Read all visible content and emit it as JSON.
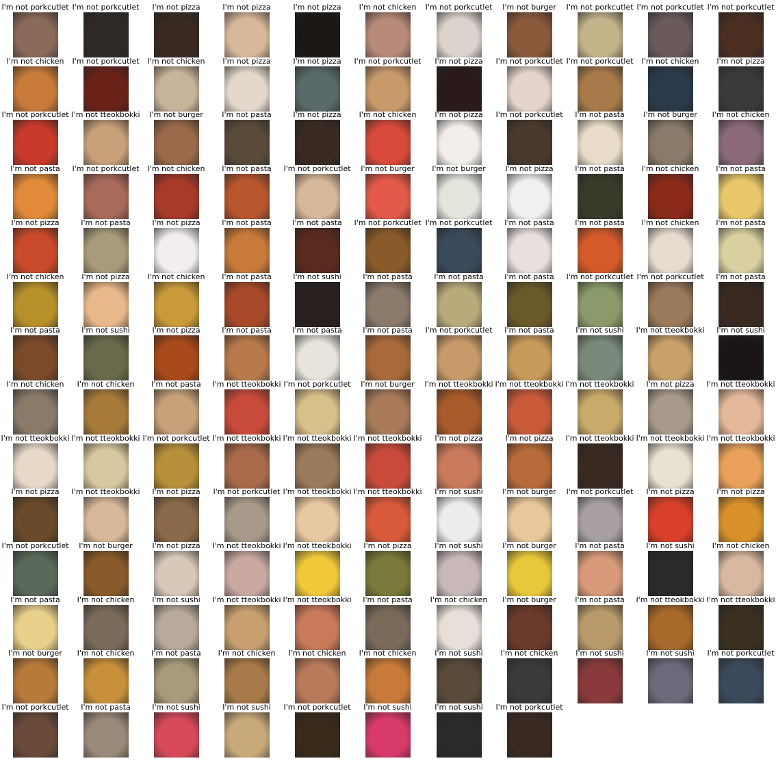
{
  "grid": {
    "rows": [
      [
        "I'm not porkcutlet",
        "I'm not porkcutlet",
        "I'm not pizza",
        "I'm not pizza",
        "I'm not pizza",
        "I'm not chicken",
        "I'm not porkcutlet",
        "I'm not burger",
        "I'm not porkcutlet",
        "I'm not porkcutlet",
        "I'm not porkcutlet"
      ],
      [
        "I'm not chicken",
        "I'm not porkcutlet",
        "I'm not chicken",
        "I'm not pizza",
        "I'm not pizza",
        "I'm not porkcutlet",
        "I'm not pizza",
        "I'm not porkcutlet",
        "I'm not porkcutlet",
        "I'm not chicken",
        "I'm not pizza"
      ],
      [
        "I'm not porkcutlet",
        "I'm not tteokbokki",
        "I'm not burger",
        "I'm not pasta",
        "I'm not pizza",
        "I'm not chicken",
        "I'm not pizza",
        "I'm not porkcutlet",
        "I'm not pasta",
        "I'm not burger",
        "I'm not chicken"
      ],
      [
        "I'm not pasta",
        "I'm not porkcutlet",
        "I'm not chicken",
        "I'm not pasta",
        "I'm not porkcutlet",
        "I'm not burger",
        "I'm not burger",
        "I'm not pizza",
        "I'm not pasta",
        "I'm not chicken",
        "I'm not pasta"
      ],
      [
        "I'm not pizza",
        "I'm not pasta",
        "I'm not pizza",
        "I'm not pasta",
        "I'm not pasta",
        "I'm not porkcutlet",
        "I'm not porkcutlet",
        "I'm not pasta",
        "I'm not pasta",
        "I'm not chicken",
        "I'm not pasta"
      ],
      [
        "I'm not chicken",
        "I'm not pizza",
        "I'm not chicken",
        "I'm not pasta",
        "I'm not sushi",
        "I'm not pasta",
        "I'm not pasta",
        "I'm not pasta",
        "I'm not porkcutlet",
        "I'm not porkcutlet",
        "I'm not pasta"
      ],
      [
        "I'm not pasta",
        "I'm not sushi",
        "I'm not pizza",
        "I'm not pasta",
        "I'm not pasta",
        "I'm not pasta",
        "I'm not porkcutlet",
        "I'm not pasta",
        "I'm not sushi",
        "I'm not tteokbokki",
        "I'm not sushi"
      ],
      [
        "I'm not chicken",
        "I'm not chicken",
        "I'm not pasta",
        "I'm not tteokbokki",
        "I'm not porkcutlet",
        "I'm not burger",
        "I'm not tteokbokki",
        "I'm not tteokbokki",
        "I'm not tteokbokki",
        "I'm not pizza",
        "I'm not tteokbokki"
      ],
      [
        "I'm not tteokbokki",
        "I'm not tteokbokki",
        "I'm not porkcutlet",
        "I'm not tteokbokki",
        "I'm not tteokbokki",
        "I'm not tteokbokki",
        "I'm not pizza",
        "I'm not pizza",
        "I'm not tteokbokki",
        "I'm not tteokbokki",
        "I'm not tteokbokki"
      ],
      [
        "I'm not pizza",
        "I'm not tteokbokki",
        "I'm not pizza",
        "I'm not porkcutlet",
        "I'm not tteokbokki",
        "I'm not tteokbokki",
        "I'm not sushi",
        "I'm not burger",
        "I'm not porkcutlet",
        "I'm not pizza",
        "I'm not pizza"
      ],
      [
        "I'm not porkcutlet",
        "I'm not burger",
        "I'm not pizza",
        "I'm not tteokbokki",
        "I'm not tteokbokki",
        "I'm not pizza",
        "I'm not sushi",
        "I'm not burger",
        "I'm not pasta",
        "I'm not sushi",
        "I'm not chicken"
      ],
      [
        "I'm not pasta",
        "I'm not chicken",
        "I'm not sushi",
        "I'm not tteokbokki",
        "I'm not tteokbokki",
        "I'm not pasta",
        "I'm not chicken",
        "I'm not burger",
        "I'm not pasta",
        "I'm not tteokbokki",
        "I'm not tteokbokki"
      ],
      [
        "I'm not burger",
        "I'm not chicken",
        "I'm not pasta",
        "I'm not chicken",
        "I'm not chicken",
        "I'm not chicken",
        "I'm not sushi",
        "I'm not chicken",
        "I'm not sushi",
        "I'm not sushi",
        "I'm not porkcutlet"
      ],
      [
        "I'm not porkcutlet",
        "I'm not pasta",
        "I'm not sushi",
        "I'm not sushi",
        "I'm not porkcutlet",
        "I'm not sushi",
        "I'm not sushi",
        "I'm not porkcutlet"
      ]
    ],
    "thumb_colors": [
      [
        "#8a6a5a",
        "#2e2a26",
        "#3a2a22",
        "#d8b89a",
        "#1a1614",
        "#b88a7a",
        "#dcd4cc",
        "#8a5a3a",
        "#c4b48a",
        "#6a5a5a",
        "#4a2e22"
      ],
      [
        "#c87a3a",
        "#6a2218",
        "#c8b49a",
        "#e4d8cc",
        "#5a6a6a",
        "#c89a6a",
        "#2a1a1a",
        "#e4d4cc",
        "#a87a4a",
        "#2a3a4a",
        "#3a3a3a"
      ],
      [
        "#c83a2a",
        "#c8a07a",
        "#9a6a4a",
        "#5a4a3a",
        "#3a2a22",
        "#d84a3a",
        "#f2eeea",
        "#4a3a2e",
        "#e8dcc8",
        "#8a7a6a",
        "#8a6a7a"
      ],
      [
        "#e08a3a",
        "#a86a5a",
        "#a83a2a",
        "#b8562e",
        "#d8b89a",
        "#e45a4a",
        "#e4e4dc",
        "#f0f0f0",
        "#3a3a2a",
        "#8a2a1a",
        "#e8c86a"
      ],
      [
        "#c84a2a",
        "#a89a7a",
        "#f2eeee",
        "#c87a3a",
        "#5a2a1e",
        "#8a5a2a",
        "#3a4a5a",
        "#e8e0dc",
        "#d45a2a",
        "#e8dcd0",
        "#d8d0a0"
      ],
      [
        "#b8902a",
        "#e8b88a",
        "#c89a3a",
        "#a84a2a",
        "#2a2020",
        "#8a7a6a",
        "#b8aa7a",
        "#6a5a2a",
        "#8a9a6a",
        "#9a7a5a",
        "#3a2a22"
      ],
      [
        "#7a4a2a",
        "#6a6a4a",
        "#a84a1a",
        "#b87a4a",
        "#e8e4dc",
        "#a86a3a",
        "#c89a6a",
        "#c89a5a",
        "#7a8a7a",
        "#c8a06a",
        "#1a1414"
      ],
      [
        "#8a7a6a",
        "#a87a3a",
        "#c8a07a",
        "#c84a3a",
        "#d8c08a",
        "#a87a5a",
        "#a85a2a",
        "#c85a3a",
        "#c8aa6a",
        "#a89a8a",
        "#e4b89a"
      ],
      [
        "#e8d8c8",
        "#d8c8a0",
        "#b8903a",
        "#a86a4a",
        "#9a7a5a",
        "#c84a3a",
        "#c87a5a",
        "#b86a3a",
        "#3a2a22",
        "#e8e0d0",
        "#e8a05a"
      ],
      [
        "#6a4a2a",
        "#d8b89a",
        "#8a6a4a",
        "#a89a8a",
        "#e8c8a0",
        "#d85a3a",
        "#ececec",
        "#e8c89a",
        "#a8a0a0",
        "#d8402a",
        "#d8902a"
      ],
      [
        "#5a6a5a",
        "#8a5a2a",
        "#d8c8b8",
        "#c8a8a0",
        "#f0c83a",
        "#7a7a3a",
        "#c8b8b8",
        "#e8c83a",
        "#d89a7a",
        "#2a2a2a",
        "#d8b8a0"
      ],
      [
        "#e8d08a",
        "#7a6a5a",
        "#b8aa9a",
        "#c8a070",
        "#c87a5a",
        "#7a6a5a",
        "#e8e0d8",
        "#6a3a2a",
        "#b89a6a",
        "#a86a2a",
        "#3a3020"
      ],
      [
        "#b87a3a",
        "#c8903a",
        "#a89a7a",
        "#a87a4a",
        "#b87a5a",
        "#c87a3a",
        "#5a4a3a",
        "#3a3a3a",
        "#8a3a3a",
        "#6a6a7a",
        "#3a4a5a"
      ],
      [
        "#6a4a3a",
        "#9a8a7a",
        "#d84a5a",
        "#c8aa7a",
        "#3a2a1a",
        "#d83a6a",
        "#2a2a2a",
        "#3a2a22"
      ]
    ]
  }
}
